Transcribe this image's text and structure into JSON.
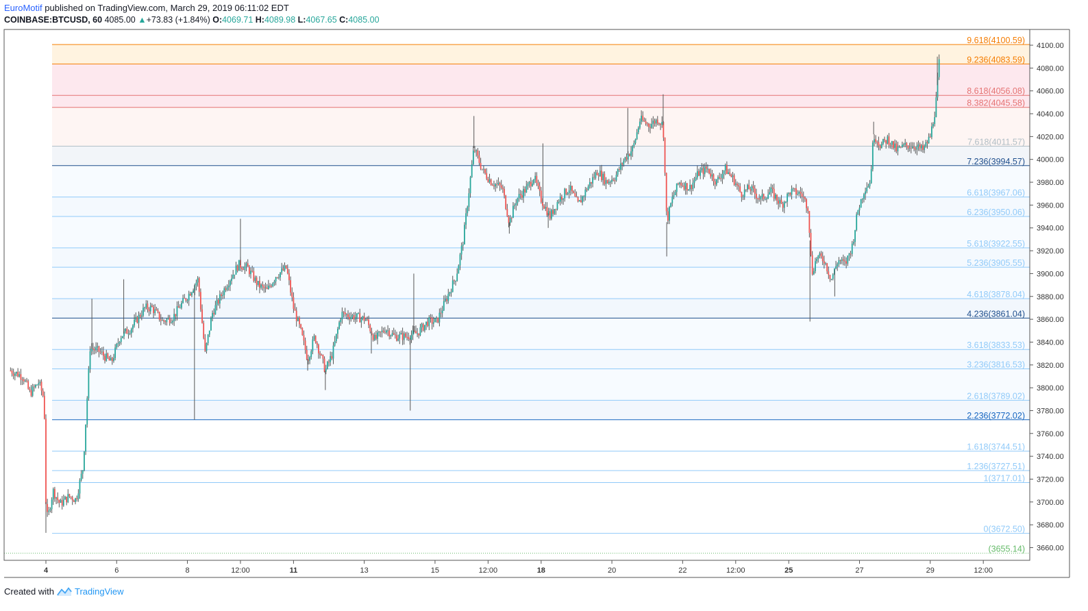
{
  "header": {
    "author": "EuroMotif",
    "published_text": "published on TradingView.com, March 29, 2019 06:11:02 EDT",
    "symbol": "COINBASE:BTCUSD, 60",
    "last": "4085.00",
    "change": "+73.83 (+1.84%)",
    "o_label": "O:",
    "o_value": "4069.71",
    "h_label": "H:",
    "h_value": "4089.98",
    "l_label": "L:",
    "l_value": "4067.65",
    "c_label": "C:",
    "c_value": "4085.00"
  },
  "footer": {
    "created_with": "Created with",
    "brand": "TradingView"
  },
  "colors": {
    "up": "#26a69a",
    "down": "#ef5350",
    "fib_blue": "#2962ff"
  },
  "chart_data": {
    "type": "candlestick",
    "ylim": [
      3648,
      4108
    ],
    "y_ticks": [
      4100,
      4080,
      4060,
      4040,
      4020,
      4000,
      3980,
      3960,
      3940,
      3920,
      3900,
      3880,
      3860,
      3840,
      3820,
      3800,
      3780,
      3760,
      3740,
      3720,
      3700,
      3680,
      3660
    ],
    "y_tick_labels": [
      "4100.00",
      "4080.00",
      "4060.00",
      "4040.00",
      "4020.00",
      "4000.00",
      "3980.00",
      "3960.00",
      "3940.00",
      "3920.00",
      "3900.00",
      "3880.00",
      "3860.00",
      "3840.00",
      "3820.00",
      "3800.00",
      "3780.00",
      "3760.00",
      "3740.00",
      "3720.00",
      "3700.00",
      "3680.00",
      "3660.00"
    ],
    "x_ticks": [
      {
        "label": "4",
        "bold": true,
        "d": 4.0
      },
      {
        "label": "6",
        "bold": false,
        "d": 6.0
      },
      {
        "label": "8",
        "bold": false,
        "d": 8.0
      },
      {
        "label": "12:00",
        "bold": false,
        "d": 9.5
      },
      {
        "label": "11",
        "bold": true,
        "d": 11.0
      },
      {
        "label": "13",
        "bold": false,
        "d": 13.0
      },
      {
        "label": "15",
        "bold": false,
        "d": 15.0
      },
      {
        "label": "12:00",
        "bold": false,
        "d": 16.5
      },
      {
        "label": "18",
        "bold": true,
        "d": 18.0
      },
      {
        "label": "20",
        "bold": false,
        "d": 20.0
      },
      {
        "label": "22",
        "bold": false,
        "d": 22.0
      },
      {
        "label": "12:00",
        "bold": false,
        "d": 23.5
      },
      {
        "label": "25",
        "bold": true,
        "d": 25.0
      },
      {
        "label": "27",
        "bold": false,
        "d": 27.0
      },
      {
        "label": "29",
        "bold": false,
        "d": 29.0
      },
      {
        "label": "12:00",
        "bold": false,
        "d": 30.5
      }
    ],
    "fib_levels": [
      {
        "ratio": "9.618",
        "value": 4100.59,
        "text": "9.618(4100.59)",
        "color": "#f57c00",
        "major": true,
        "fill": "#fff3e0"
      },
      {
        "ratio": "9.236",
        "value": 4083.59,
        "text": "9.236(4083.59)",
        "color": "#f57c00",
        "major": true,
        "fill": "#fde8ee"
      },
      {
        "ratio": "8.618",
        "value": 4056.08,
        "text": "8.618(4056.08)",
        "color": "#e57373",
        "major": false,
        "fill": "#fde8ee"
      },
      {
        "ratio": "8.382",
        "value": 4045.58,
        "text": "8.382(4045.58)",
        "color": "#e57373",
        "major": false,
        "fill": "#fef5f3"
      },
      {
        "ratio": "7.618",
        "value": 4011.57,
        "text": "7.618(4011.57)",
        "color": "#b0bec5",
        "major": false,
        "fill": "#f2f5f9"
      },
      {
        "ratio": "7.236",
        "value": 3994.57,
        "text": "7.236(3994.57)",
        "color": "#1e4e8c",
        "major": true,
        "fill": "#f7fbff"
      },
      {
        "ratio": "6.618",
        "value": 3967.06,
        "text": "6.618(3967.06)",
        "color": "#90caf9",
        "major": false,
        "fill": "#f4f9fe"
      },
      {
        "ratio": "6.236",
        "value": 3950.06,
        "text": "6.236(3950.06)",
        "color": "#90caf9",
        "major": false,
        "fill": "#f7fbff"
      },
      {
        "ratio": "5.618",
        "value": 3922.55,
        "text": "5.618(3922.55)",
        "color": "#90caf9",
        "major": false,
        "fill": "#f4f9fe"
      },
      {
        "ratio": "5.236",
        "value": 3905.55,
        "text": "5.236(3905.55)",
        "color": "#90caf9",
        "major": false,
        "fill": "#f7fbff"
      },
      {
        "ratio": "4.618",
        "value": 3878.04,
        "text": "4.618(3878.04)",
        "color": "#90caf9",
        "major": false,
        "fill": "#f2f7fd"
      },
      {
        "ratio": "4.236",
        "value": 3861.04,
        "text": "4.236(3861.04)",
        "color": "#1e4e8c",
        "major": true,
        "fill": "#f7fbff"
      },
      {
        "ratio": "3.618",
        "value": 3833.53,
        "text": "3.618(3833.53)",
        "color": "#90caf9",
        "major": false,
        "fill": "#f4f9fe"
      },
      {
        "ratio": "3.236",
        "value": 3816.53,
        "text": "3.236(3816.53)",
        "color": "#90caf9",
        "major": false,
        "fill": "#f7fbff"
      },
      {
        "ratio": "2.618",
        "value": 3789.02,
        "text": "2.618(3789.02)",
        "color": "#90caf9",
        "major": false,
        "fill": "#f2f7fd"
      },
      {
        "ratio": "2.236",
        "value": 3772.02,
        "text": "2.236(3772.02)",
        "color": "#1565c0",
        "major": true,
        "fill": "#ffffff"
      },
      {
        "ratio": "1.618",
        "value": 3744.51,
        "text": "1.618(3744.51)",
        "color": "#90caf9",
        "major": false,
        "fill": "#ffffff"
      },
      {
        "ratio": "1.236",
        "value": 3727.51,
        "text": "1.236(3727.51)",
        "color": "#90caf9",
        "major": false,
        "fill": "#ffffff"
      },
      {
        "ratio": "1",
        "value": 3717.01,
        "text": "1(3717.01)",
        "color": "#90caf9",
        "major": false,
        "fill": "#ffffff"
      },
      {
        "ratio": "0",
        "value": 3672.5,
        "text": "0(3672.50)",
        "color": "#90caf9",
        "major": false,
        "fill": "#ffffff"
      },
      {
        "ratio": "",
        "value": 3655.14,
        "text": "(3655.14)",
        "color": "#66bb6a",
        "major": false,
        "dotted": true,
        "fill": "#ffffff"
      }
    ],
    "price_path": [
      [
        3.0,
        3815
      ],
      [
        3.35,
        3810
      ],
      [
        3.55,
        3795
      ],
      [
        3.8,
        3805
      ],
      [
        3.95,
        3790
      ],
      [
        4.0,
        3700
      ],
      [
        4.05,
        3685
      ],
      [
        4.2,
        3710
      ],
      [
        4.4,
        3698
      ],
      [
        4.65,
        3705
      ],
      [
        4.85,
        3702
      ],
      [
        5.05,
        3730
      ],
      [
        5.25,
        3835
      ],
      [
        5.5,
        3832
      ],
      [
        5.85,
        3822
      ],
      [
        6.1,
        3845
      ],
      [
        6.4,
        3852
      ],
      [
        6.8,
        3870
      ],
      [
        7.0,
        3870
      ],
      [
        7.3,
        3858
      ],
      [
        7.6,
        3862
      ],
      [
        7.8,
        3872
      ],
      [
        8.0,
        3880
      ],
      [
        8.3,
        3895
      ],
      [
        8.5,
        3830
      ],
      [
        8.7,
        3865
      ],
      [
        9.1,
        3890
      ],
      [
        9.45,
        3908
      ],
      [
        9.7,
        3905
      ],
      [
        10.0,
        3890
      ],
      [
        10.25,
        3885
      ],
      [
        10.5,
        3898
      ],
      [
        10.8,
        3905
      ],
      [
        11.0,
        3870
      ],
      [
        11.2,
        3850
      ],
      [
        11.4,
        3825
      ],
      [
        11.6,
        3845
      ],
      [
        11.9,
        3815
      ],
      [
        12.1,
        3830
      ],
      [
        12.35,
        3865
      ],
      [
        12.75,
        3862
      ],
      [
        13.05,
        3860
      ],
      [
        13.3,
        3842
      ],
      [
        13.6,
        3852
      ],
      [
        13.85,
        3845
      ],
      [
        14.2,
        3845
      ],
      [
        14.5,
        3848
      ],
      [
        14.8,
        3858
      ],
      [
        15.05,
        3858
      ],
      [
        15.35,
        3880
      ],
      [
        15.6,
        3898
      ],
      [
        15.8,
        3930
      ],
      [
        15.95,
        3970
      ],
      [
        16.1,
        4010
      ],
      [
        16.35,
        3990
      ],
      [
        16.6,
        3980
      ],
      [
        16.9,
        3975
      ],
      [
        17.1,
        3945
      ],
      [
        17.3,
        3965
      ],
      [
        17.6,
        3975
      ],
      [
        17.8,
        3985
      ],
      [
        18.0,
        3965
      ],
      [
        18.25,
        3950
      ],
      [
        18.5,
        3965
      ],
      [
        18.8,
        3975
      ],
      [
        19.05,
        3960
      ],
      [
        19.3,
        3975
      ],
      [
        19.6,
        3990
      ],
      [
        19.85,
        3980
      ],
      [
        20.1,
        3985
      ],
      [
        20.35,
        4000
      ],
      [
        20.6,
        4010
      ],
      [
        20.8,
        4035
      ],
      [
        21.05,
        4030
      ],
      [
        21.3,
        4035
      ],
      [
        21.45,
        4030
      ],
      [
        21.55,
        3945
      ],
      [
        21.7,
        3965
      ],
      [
        21.9,
        3980
      ],
      [
        22.2,
        3975
      ],
      [
        22.45,
        3988
      ],
      [
        22.7,
        3992
      ],
      [
        22.95,
        3980
      ],
      [
        23.2,
        3992
      ],
      [
        23.45,
        3982
      ],
      [
        23.65,
        3970
      ],
      [
        23.9,
        3975
      ],
      [
        24.2,
        3965
      ],
      [
        24.5,
        3972
      ],
      [
        24.8,
        3960
      ],
      [
        25.05,
        3972
      ],
      [
        25.35,
        3970
      ],
      [
        25.55,
        3958
      ],
      [
        25.65,
        3900
      ],
      [
        25.8,
        3915
      ],
      [
        26.0,
        3912
      ],
      [
        26.2,
        3895
      ],
      [
        26.4,
        3912
      ],
      [
        26.6,
        3908
      ],
      [
        26.8,
        3925
      ],
      [
        26.95,
        3955
      ],
      [
        27.15,
        3975
      ],
      [
        27.3,
        3980
      ],
      [
        27.4,
        4022
      ],
      [
        27.6,
        4012
      ],
      [
        27.8,
        4018
      ],
      [
        28.05,
        4008
      ],
      [
        28.3,
        4012
      ],
      [
        28.55,
        4012
      ],
      [
        28.8,
        4008
      ],
      [
        29.0,
        4020
      ],
      [
        29.15,
        4045
      ],
      [
        29.25,
        4085
      ]
    ],
    "spikes": [
      {
        "d": 4.0,
        "v": 3673
      },
      {
        "d": 5.3,
        "v": 3878
      },
      {
        "d": 6.2,
        "v": 3895
      },
      {
        "d": 8.2,
        "v": 3772
      },
      {
        "d": 9.5,
        "v": 3948
      },
      {
        "d": 11.4,
        "v": 3815
      },
      {
        "d": 11.9,
        "v": 3798
      },
      {
        "d": 13.2,
        "v": 3830
      },
      {
        "d": 14.4,
        "v": 3900
      },
      {
        "d": 14.3,
        "v": 3780
      },
      {
        "d": 16.1,
        "v": 4038
      },
      {
        "d": 17.1,
        "v": 3935
      },
      {
        "d": 18.05,
        "v": 4014
      },
      {
        "d": 18.2,
        "v": 3940
      },
      {
        "d": 20.45,
        "v": 4045
      },
      {
        "d": 21.45,
        "v": 4057
      },
      {
        "d": 21.55,
        "v": 3915
      },
      {
        "d": 25.6,
        "v": 3858
      },
      {
        "d": 26.3,
        "v": 3880
      },
      {
        "d": 27.4,
        "v": 4033
      },
      {
        "d": 29.2,
        "v": 4090
      }
    ]
  }
}
